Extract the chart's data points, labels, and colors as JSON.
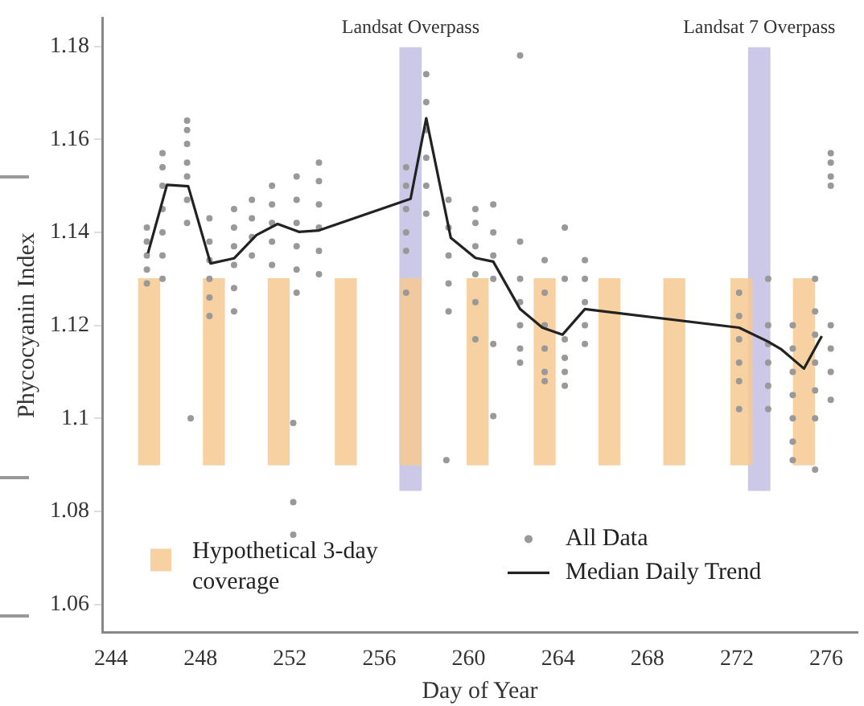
{
  "chart_data": {
    "type": "scatter",
    "xlabel": "Day of Year",
    "ylabel": "Phycocyanin Index",
    "xlim": [
      243.6,
      277.4
    ],
    "ylim": [
      1.054,
      1.186
    ],
    "xticks": [
      244,
      248,
      252,
      256,
      260,
      264,
      268,
      272,
      276
    ],
    "yticks": [
      1.06,
      1.08,
      1.1,
      1.12,
      1.14,
      1.16,
      1.18
    ],
    "legend": "bottom",
    "bands": [
      {
        "axis": "x",
        "from": 256.9,
        "to": 257.9,
        "label": "Landsat Overpass",
        "color": "#ccc9e8"
      },
      {
        "axis": "x",
        "from": 272.5,
        "to": 273.5,
        "label": "Landsat 7 Overpass",
        "color": "#ccc9e8"
      }
    ],
    "series": [
      {
        "type": "bar",
        "name": "Hypothetical 3-day coverage",
        "color": "#f7c992",
        "x": [
          245.7,
          248.6,
          251.5,
          254.5,
          257.4,
          260.4,
          263.4,
          266.3,
          269.2,
          272.2,
          275.0
        ],
        "base": [
          1.09,
          1.09,
          1.09,
          1.09,
          1.09,
          1.09,
          1.09,
          1.09,
          1.09,
          1.09,
          1.09
        ],
        "values": [
          0.04,
          0.04,
          0.04,
          0.04,
          0.04,
          0.04,
          0.04,
          0.04,
          0.04,
          0.04,
          0.04
        ]
      },
      {
        "name": "All Data",
        "color": "#999999",
        "marker": "circle",
        "x": [
          245.6,
          245.6,
          245.6,
          245.6,
          245.6,
          246.3,
          246.3,
          246.3,
          246.3,
          246.3,
          246.3,
          246.3,
          247.4,
          247.4,
          247.4,
          247.4,
          247.4,
          247.4,
          247.4,
          247.56,
          248.4,
          248.4,
          248.4,
          248.4,
          248.4,
          248.4,
          249.5,
          249.5,
          249.5,
          249.5,
          249.5,
          249.5,
          250.3,
          250.3,
          250.3,
          250.3,
          251.2,
          251.2,
          251.2,
          251.2,
          251.2,
          252.3,
          252.3,
          252.3,
          252.3,
          252.3,
          252.3,
          252.15,
          252.15,
          252.15,
          253.3,
          253.3,
          253.3,
          253.3,
          253.3,
          253.3,
          257.2,
          257.2,
          257.2,
          257.2,
          257.2,
          257.2,
          258.1,
          258.1,
          258.1,
          258.1,
          258.1,
          258.1,
          259.1,
          259.1,
          259.1,
          259.1,
          259.1,
          259.0,
          260.3,
          260.3,
          260.3,
          260.3,
          260.3,
          260.3,
          261.1,
          261.1,
          261.1,
          261.1,
          261.1,
          261.1,
          262.3,
          262.3,
          262.3,
          262.3,
          262.3,
          262.3,
          262.3,
          263.4,
          263.4,
          263.4,
          263.4,
          263.4,
          263.4,
          264.3,
          264.3,
          264.3,
          264.3,
          264.3,
          264.3,
          265.2,
          265.2,
          265.2,
          265.2,
          265.2,
          272.1,
          272.1,
          272.1,
          272.1,
          272.1,
          272.1,
          273.4,
          273.4,
          273.4,
          273.4,
          273.4,
          273.4,
          274.5,
          274.5,
          274.5,
          274.5,
          274.5,
          274.5,
          274.5,
          275.5,
          275.5,
          275.5,
          275.5,
          275.5,
          275.5,
          275.5,
          276.2,
          276.2,
          276.2,
          276.2,
          276.2,
          276.2,
          276.2,
          276.2
        ],
        "values": [
          1.129,
          1.132,
          1.135,
          1.138,
          1.141,
          1.13,
          1.135,
          1.14,
          1.145,
          1.15,
          1.154,
          1.157,
          1.142,
          1.147,
          1.152,
          1.155,
          1.159,
          1.162,
          1.164,
          1.1,
          1.122,
          1.126,
          1.13,
          1.134,
          1.138,
          1.143,
          1.123,
          1.128,
          1.133,
          1.137,
          1.141,
          1.145,
          1.135,
          1.139,
          1.143,
          1.147,
          1.133,
          1.138,
          1.142,
          1.146,
          1.15,
          1.127,
          1.132,
          1.137,
          1.142,
          1.147,
          1.152,
          1.099,
          1.082,
          1.075,
          1.131,
          1.136,
          1.141,
          1.146,
          1.151,
          1.155,
          1.127,
          1.136,
          1.14,
          1.145,
          1.15,
          1.154,
          1.144,
          1.15,
          1.156,
          1.162,
          1.168,
          1.174,
          1.123,
          1.129,
          1.135,
          1.141,
          1.147,
          1.091,
          1.117,
          1.125,
          1.131,
          1.137,
          1.142,
          1.145,
          1.1005,
          1.116,
          1.13,
          1.135,
          1.14,
          1.146,
          1.178,
          1.138,
          1.13,
          1.125,
          1.12,
          1.115,
          1.112,
          1.134,
          1.127,
          1.12,
          1.115,
          1.11,
          1.108,
          1.141,
          1.13,
          1.117,
          1.113,
          1.11,
          1.107,
          1.134,
          1.13,
          1.125,
          1.12,
          1.116,
          1.127,
          1.122,
          1.117,
          1.112,
          1.108,
          1.102,
          1.13,
          1.12,
          1.116,
          1.112,
          1.107,
          1.102,
          1.12,
          1.115,
          1.11,
          1.105,
          1.1,
          1.095,
          1.091,
          1.13,
          1.123,
          1.118,
          1.112,
          1.106,
          1.1,
          1.089,
          1.157,
          1.155,
          1.152,
          1.15,
          1.12,
          1.115,
          1.11,
          1.104
        ]
      },
      {
        "type": "line",
        "name": "Median Daily Trend",
        "color": "#222222",
        "marker": "none",
        "x": [
          245.65,
          246.5,
          247.45,
          248.45,
          249.5,
          250.5,
          251.45,
          252.4,
          253.3,
          257.4,
          258.1,
          259.2,
          260.3,
          261.1,
          262.3,
          263.3,
          264.2,
          265.2,
          272.1,
          273.4,
          274.0,
          275.0,
          275.8
        ],
        "values": [
          1.1355,
          1.1502,
          1.1499,
          1.1333,
          1.1344,
          1.1394,
          1.1418,
          1.1401,
          1.1404,
          1.1472,
          1.1645,
          1.1388,
          1.1345,
          1.1337,
          1.1235,
          1.1195,
          1.118,
          1.1235,
          1.1195,
          1.1165,
          1.1148,
          1.1107,
          1.1177
        ]
      }
    ]
  }
}
